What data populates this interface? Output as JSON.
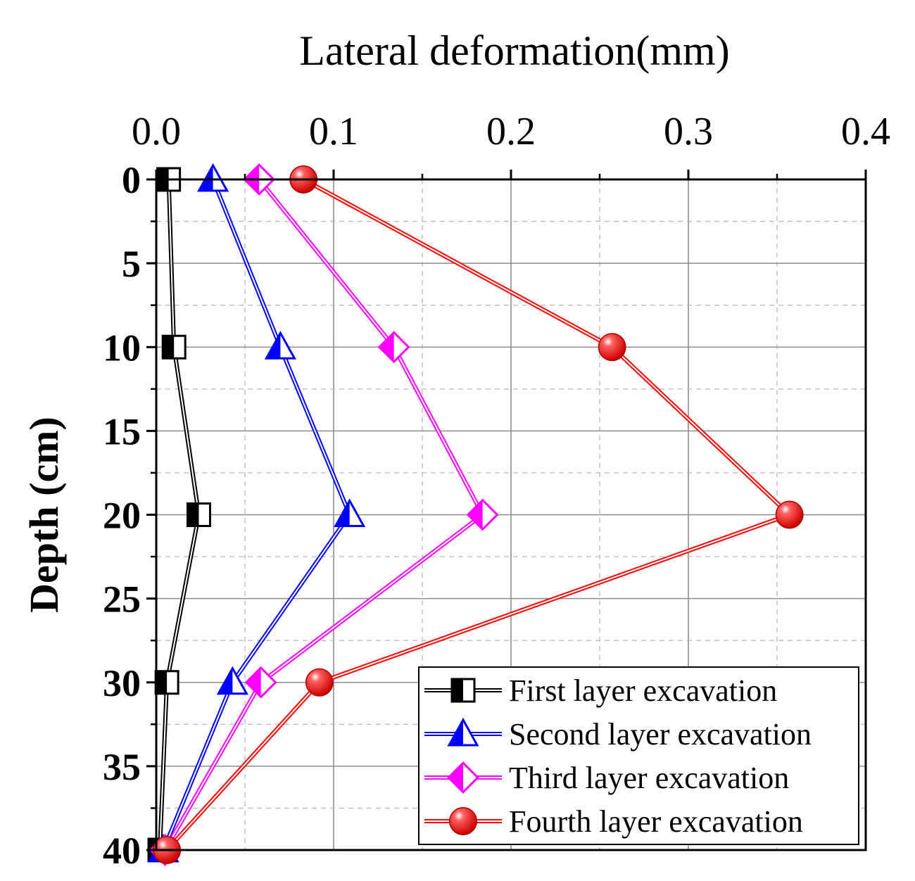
{
  "chart_data": {
    "type": "line",
    "title": "",
    "xlabel": "Lateral deformation(mm)",
    "ylabel": "Depth (cm)",
    "x_axis_position": "top",
    "y_axis_inverted": true,
    "xlim": [
      0.0,
      0.4
    ],
    "ylim": [
      0,
      40
    ],
    "x_ticks": [
      "0.0",
      "0.1",
      "0.2",
      "0.3",
      "0.4"
    ],
    "y_ticks": [
      "0",
      "5",
      "10",
      "15",
      "20",
      "25",
      "30",
      "35",
      "40"
    ],
    "grid": true,
    "legend_position": "bottom-right",
    "depths": [
      0,
      10,
      20,
      30,
      40
    ],
    "series": [
      {
        "name": "First layer excavation",
        "color": "#000000",
        "marker": "square",
        "values": [
          0.007,
          0.01,
          0.024,
          0.006,
          0.002
        ]
      },
      {
        "name": "Second layer excavation",
        "color": "#0000ff",
        "marker": "triangle",
        "values": [
          0.032,
          0.07,
          0.109,
          0.043,
          0.004
        ]
      },
      {
        "name": "Third layer excavation",
        "color": "#ff00ff",
        "marker": "diamond",
        "values": [
          0.058,
          0.134,
          0.184,
          0.059,
          0.005
        ]
      },
      {
        "name": "Fourth layer excavation",
        "color": "#ff0000",
        "marker": "circle",
        "values": [
          0.083,
          0.257,
          0.357,
          0.092,
          0.006
        ]
      }
    ]
  }
}
